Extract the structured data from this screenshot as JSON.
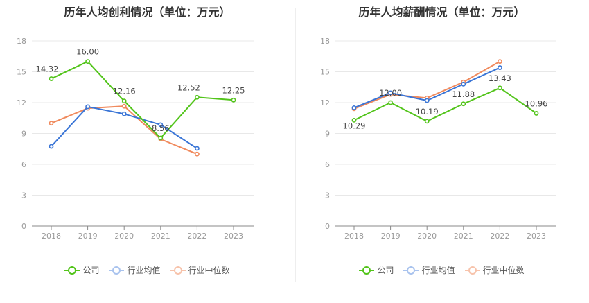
{
  "chart_data": [
    {
      "type": "line",
      "title": "历年人均创利情况（单位：万元）",
      "categories": [
        "2018",
        "2019",
        "2020",
        "2021",
        "2022",
        "2023"
      ],
      "ylim": [
        0,
        18
      ],
      "yticks": [
        "0",
        "3",
        "6",
        "9",
        "12",
        "15",
        "18"
      ],
      "grid": true,
      "legend_position": "bottom",
      "series": [
        {
          "name": "公司",
          "color": "#52c41a",
          "values": [
            14.32,
            16.0,
            12.16,
            8.56,
            12.52,
            12.25
          ],
          "labels": [
            "14.32",
            "16.00",
            "12.16",
            "8.56",
            "12.52",
            "12.25"
          ]
        },
        {
          "name": "行业均值",
          "color": "#3a75d6",
          "values": [
            7.75,
            11.6,
            10.9,
            9.85,
            7.55,
            null
          ]
        },
        {
          "name": "行业中位数",
          "color": "#f08a5d",
          "values": [
            10.0,
            11.45,
            11.65,
            8.45,
            7.0,
            null
          ]
        }
      ]
    },
    {
      "type": "line",
      "title": "历年人均薪酬情况（单位：万元）",
      "categories": [
        "2018",
        "2019",
        "2020",
        "2021",
        "2022",
        "2023"
      ],
      "ylim": [
        0,
        18
      ],
      "yticks": [
        "0",
        "3",
        "6",
        "9",
        "12",
        "15",
        "18"
      ],
      "grid": true,
      "legend_position": "bottom",
      "series": [
        {
          "name": "公司",
          "color": "#52c41a",
          "values": [
            10.29,
            12.0,
            10.19,
            11.88,
            13.43,
            10.96
          ],
          "labels": [
            "10.29",
            "12.00",
            "10.19",
            "11.88",
            "13.43",
            "10.96"
          ]
        },
        {
          "name": "行业均值",
          "color": "#3a75d6",
          "values": [
            11.5,
            12.95,
            12.2,
            13.8,
            15.4,
            null
          ]
        },
        {
          "name": "行业中位数",
          "color": "#f08a5d",
          "values": [
            11.4,
            12.8,
            12.45,
            14.0,
            16.0,
            null
          ]
        }
      ]
    }
  ],
  "legend": {
    "company": "公司",
    "industry_avg": "行业均值",
    "industry_median": "行业中位数"
  },
  "colors": {
    "company": "#52c41a",
    "industry_avg": "#3a75d6",
    "industry_median": "#f08a5d",
    "grid": "#e8e8e8",
    "axis": "#999999"
  }
}
